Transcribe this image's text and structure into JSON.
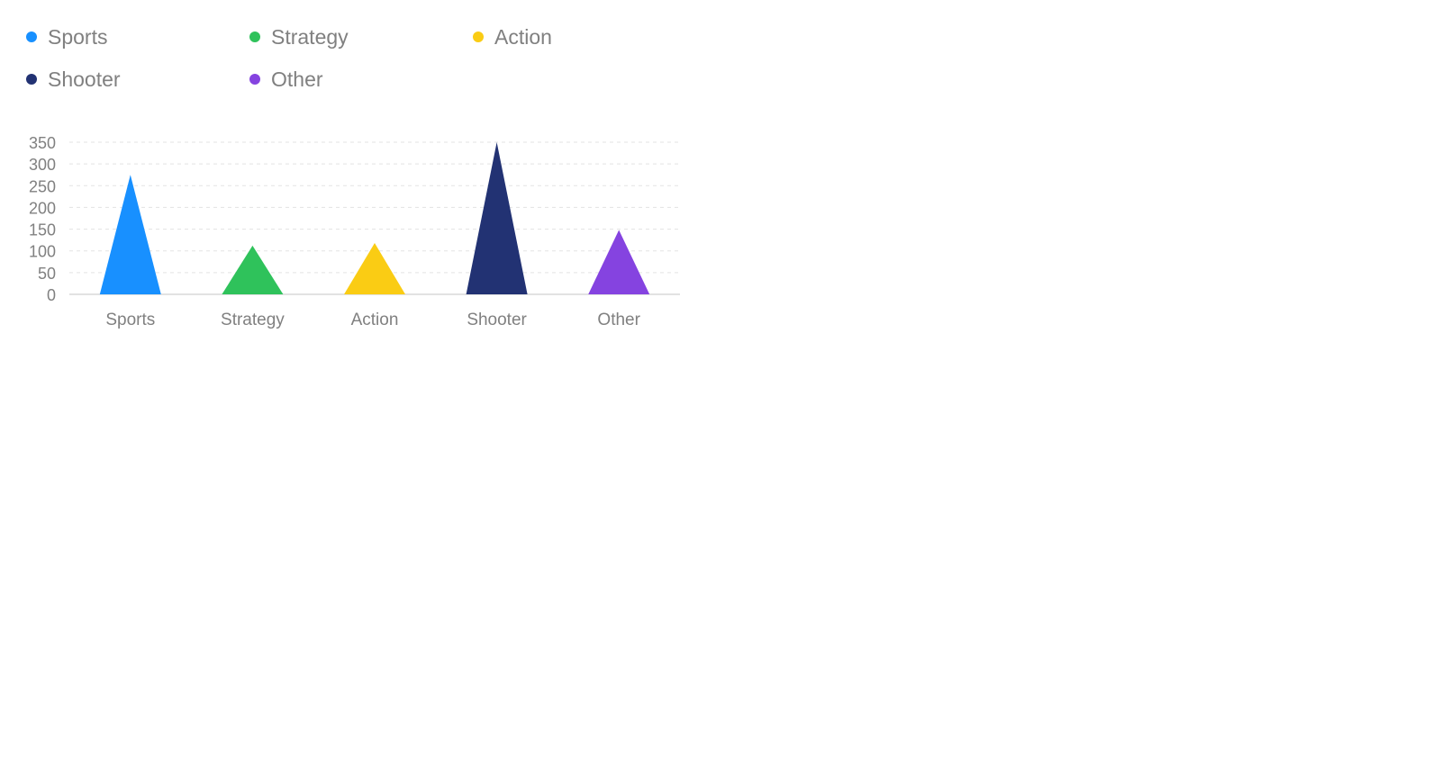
{
  "chart_data": {
    "type": "bar",
    "bar_shape": "triangle",
    "categories": [
      "Sports",
      "Strategy",
      "Action",
      "Shooter",
      "Other"
    ],
    "values": [
      275,
      112,
      118,
      350,
      148
    ],
    "colors": [
      "#1890ff",
      "#2fc25b",
      "#facc14",
      "#223273",
      "#8543e0"
    ],
    "title": "",
    "xlabel": "",
    "ylabel": "",
    "ylim": [
      0,
      350
    ],
    "yticks": [
      0,
      50,
      100,
      150,
      200,
      250,
      300,
      350
    ],
    "grid": true,
    "legend": {
      "position": "top-left",
      "items": [
        {
          "label": "Sports",
          "color": "#1890ff"
        },
        {
          "label": "Strategy",
          "color": "#2fc25b"
        },
        {
          "label": "Action",
          "color": "#facc14"
        },
        {
          "label": "Shooter",
          "color": "#223273"
        },
        {
          "label": "Other",
          "color": "#8543e0"
        }
      ]
    }
  }
}
